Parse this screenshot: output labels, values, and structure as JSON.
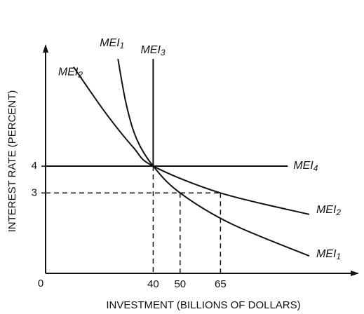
{
  "chart_data": {
    "type": "line",
    "xlabel": "INVESTMENT (BILLIONS OF DOLLARS)",
    "ylabel": "INTEREST RATE (PERCENT)",
    "origin_label": "0",
    "xlim": [
      0,
      116
    ],
    "ylim": [
      0,
      8.5
    ],
    "xticks": [
      40,
      50,
      65
    ],
    "yticks": [
      4,
      3
    ],
    "color": "#111",
    "series": [
      {
        "name": "MEI1",
        "x": [
          26.9,
          30.0,
          33.9,
          40,
          50,
          69,
          98
        ],
        "y": [
          8.0,
          6.3,
          5.0,
          4,
          3,
          1.85,
          0.65
        ]
      },
      {
        "name": "MEI2",
        "x": [
          10.4,
          22.2,
          32.6,
          40,
          65,
          98
        ],
        "y": [
          7.7,
          6.0,
          4.7,
          4,
          3,
          2.2
        ]
      },
      {
        "name": "MEI3",
        "x": [
          40,
          40
        ],
        "y": [
          8.0,
          4
        ]
      },
      {
        "name": "MEI4",
        "x": [
          0,
          90
        ],
        "y": [
          4,
          4
        ]
      }
    ]
  }
}
